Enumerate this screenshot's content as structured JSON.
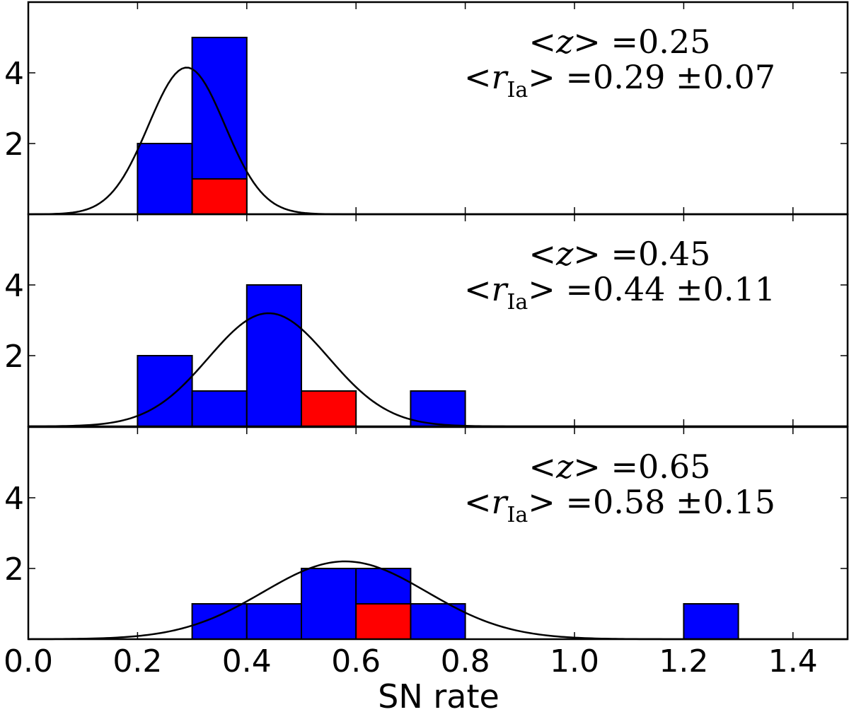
{
  "chart_data": {
    "type": "bar",
    "xlabel": "SN rate",
    "xlim": [
      0.0,
      1.5
    ],
    "x_ticks": [
      "0.0",
      "0.2",
      "0.4",
      "0.6",
      "0.8",
      "1.0",
      "1.2",
      "1.4"
    ],
    "bin_width": 0.1,
    "colors": {
      "blue": "#0000ff",
      "red": "#ff0000",
      "edge": "#000000",
      "curve": "#000000"
    },
    "panels": [
      {
        "ylim": [
          0,
          6
        ],
        "y_ticks": [
          "2",
          "4"
        ],
        "annotation": {
          "line1_lhs": "<z>",
          "line1_value": "=0.25",
          "line2_lhs": "<r",
          "line2_sub": "Ia",
          "line2_rhs": ">",
          "line2_value": "=0.29 ±0.07"
        },
        "blue_bins": [
          {
            "x": 0.2,
            "count": 2
          },
          {
            "x": 0.3,
            "count": 5
          }
        ],
        "red_bins": [
          {
            "x": 0.3,
            "count": 1
          }
        ],
        "gaussian": {
          "mean": 0.29,
          "sigma": 0.07,
          "peak": 4.15
        }
      },
      {
        "ylim": [
          0,
          6
        ],
        "y_ticks": [
          "2",
          "4"
        ],
        "annotation": {
          "line1_lhs": "<z>",
          "line1_value": "=0.45",
          "line2_lhs": "<r",
          "line2_sub": "Ia",
          "line2_rhs": ">",
          "line2_value": "=0.44 ±0.11"
        },
        "blue_bins": [
          {
            "x": 0.2,
            "count": 2
          },
          {
            "x": 0.3,
            "count": 1
          },
          {
            "x": 0.4,
            "count": 4
          },
          {
            "x": 0.7,
            "count": 1
          }
        ],
        "red_bins": [
          {
            "x": 0.5,
            "count": 1
          }
        ],
        "gaussian": {
          "mean": 0.44,
          "sigma": 0.11,
          "peak": 3.2
        }
      },
      {
        "ylim": [
          0,
          6
        ],
        "y_ticks": [
          "2",
          "4"
        ],
        "annotation": {
          "line1_lhs": "<z>",
          "line1_value": "=0.65",
          "line2_lhs": "<r",
          "line2_sub": "Ia",
          "line2_rhs": ">",
          "line2_value": "=0.58 ±0.15"
        },
        "blue_bins": [
          {
            "x": 0.3,
            "count": 1
          },
          {
            "x": 0.4,
            "count": 1
          },
          {
            "x": 0.5,
            "count": 2
          },
          {
            "x": 0.6,
            "count": 2
          },
          {
            "x": 0.7,
            "count": 1
          },
          {
            "x": 1.2,
            "count": 1
          }
        ],
        "red_bins": [
          {
            "x": 0.6,
            "count": 1
          }
        ],
        "gaussian": {
          "mean": 0.58,
          "sigma": 0.15,
          "peak": 2.2
        }
      }
    ]
  }
}
